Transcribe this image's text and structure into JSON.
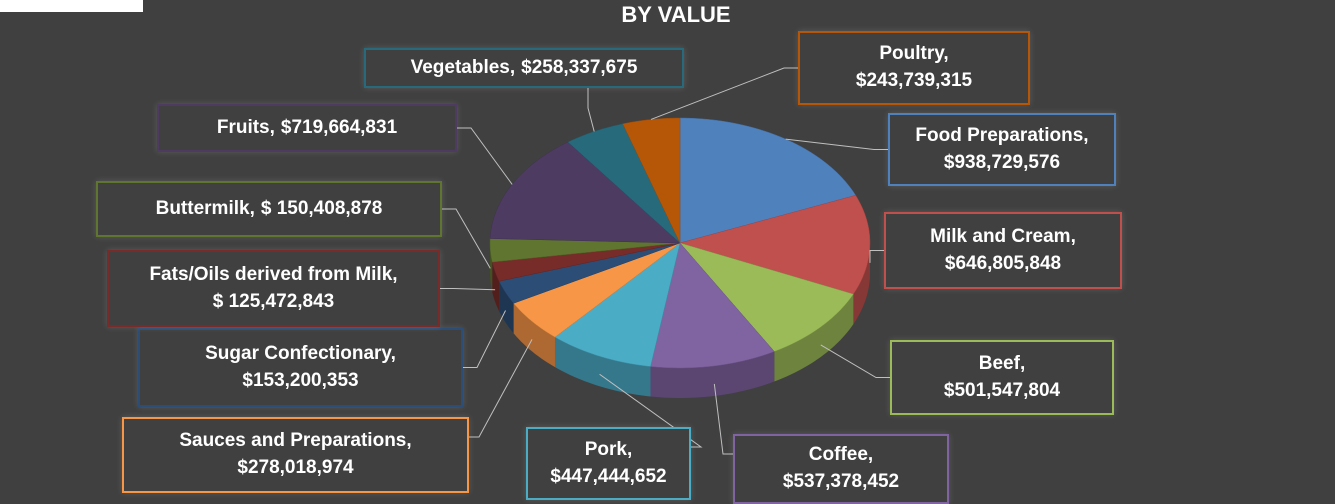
{
  "chart_data": {
    "type": "pie",
    "title": "BY VALUE",
    "categories": [
      "Food Preparations",
      "Milk and Cream",
      "Beef",
      "Coffee",
      "Pork",
      "Sauces and Preparations",
      "Sugar Confectionary",
      "Fats/Oils derived from Milk",
      "Buttermilk",
      "Fruits",
      "Vegetables",
      "Poultry"
    ],
    "values": [
      938729576,
      646805848,
      501547804,
      537378452,
      447444652,
      278018974,
      153200353,
      125472843,
      150408878,
      719664831,
      258337675,
      243739315
    ],
    "value_labels": [
      "$938,729,576",
      "$646,805,848",
      "$501,547,804",
      "$537,378,452",
      "$447,444,652",
      "$278,018,974",
      "$153,200,353",
      "$ 125,472,843",
      "$ 150,408,878",
      "$719,664,831",
      "$258,337,675",
      "$243,739,315"
    ],
    "colors": [
      "#4f81bd",
      "#c0504d",
      "#9bbb59",
      "#8064a2",
      "#4bacc6",
      "#f79646",
      "#2c4d75",
      "#772c2a",
      "#5f7530",
      "#4d3b62",
      "#276a7c",
      "#b65708"
    ]
  }
}
